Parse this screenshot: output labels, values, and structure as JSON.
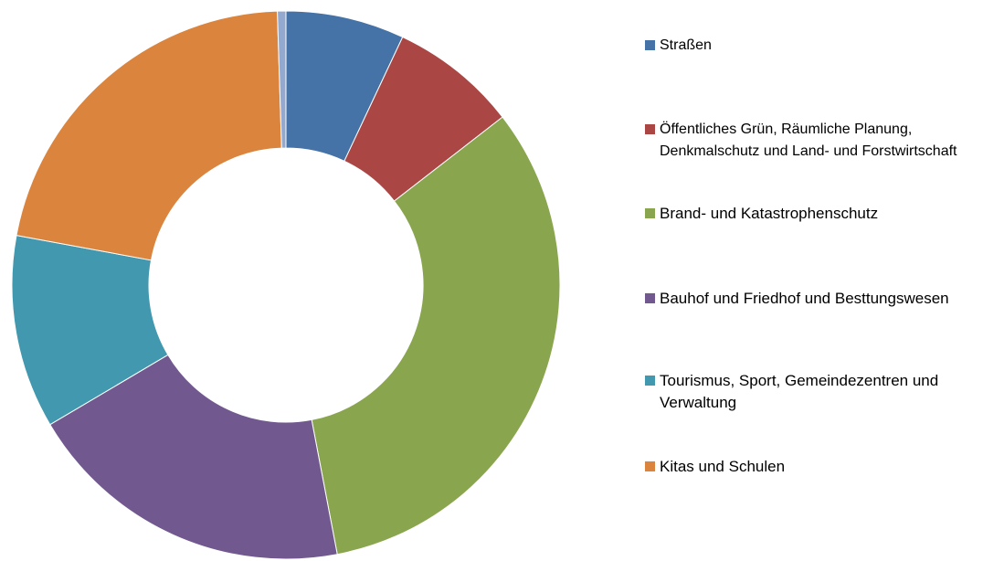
{
  "chart_data": {
    "type": "donut",
    "categories": [
      "Straßen",
      "Öffentliches Grün, Räumliche Planung, Denkmalschutz und Land- und Forstwirtschaft",
      "Brand- und Katastrophenschutz",
      "Bauhof und Friedhof und Besttungswesen",
      "Tourismus, Sport, Gemeindezentren und Verwaltung",
      "Kitas und Schulen",
      null
    ],
    "values": [
      7,
      7.5,
      32.5,
      19.5,
      11.4,
      21.6,
      0.5
    ],
    "colors": [
      "#4572a7",
      "#aa4643",
      "#89a54e",
      "#71588f",
      "#4198af",
      "#db843d",
      "#93a9cf"
    ],
    "legend": "right"
  }
}
